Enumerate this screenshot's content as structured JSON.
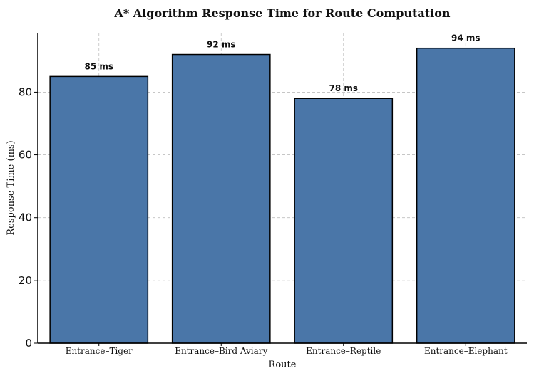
{
  "chart_data": {
    "type": "bar",
    "title": "A* Algorithm Response Time for Route Computation",
    "xlabel": "Route",
    "ylabel": "Response Time (ms)",
    "categories": [
      "Entrance–Tiger",
      "Entrance–Bird Aviary",
      "Entrance–Reptile",
      "Entrance–Elephant"
    ],
    "values": [
      85,
      92,
      78,
      94
    ],
    "data_labels": [
      "85 ms",
      "92 ms",
      "78 ms",
      "94 ms"
    ],
    "ylim": [
      0,
      98.7
    ],
    "yticks": [
      0,
      20,
      40,
      60,
      80
    ],
    "grid": true,
    "bar_color": "#4a76a8",
    "bar_edge_color": "#000000"
  }
}
